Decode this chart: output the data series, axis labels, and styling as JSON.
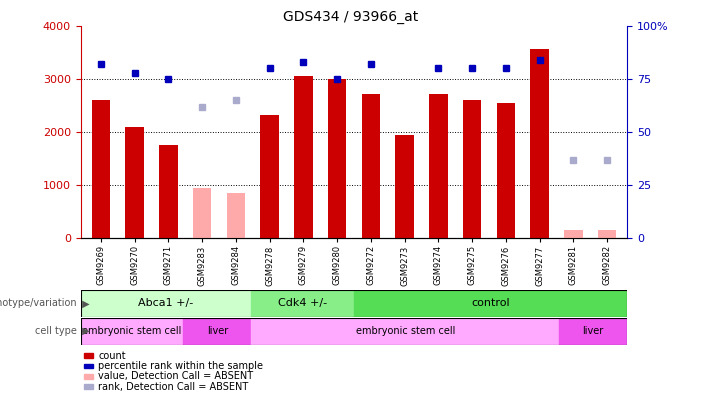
{
  "title": "GDS434 / 93966_at",
  "samples": [
    "GSM9269",
    "GSM9270",
    "GSM9271",
    "GSM9283",
    "GSM9284",
    "GSM9278",
    "GSM9279",
    "GSM9280",
    "GSM9272",
    "GSM9273",
    "GSM9274",
    "GSM9275",
    "GSM9276",
    "GSM9277",
    "GSM9281",
    "GSM9282"
  ],
  "counts": [
    2600,
    2100,
    1750,
    null,
    null,
    2320,
    3050,
    3000,
    2720,
    1950,
    2720,
    2600,
    2540,
    3570,
    null,
    null
  ],
  "absent_counts": [
    null,
    null,
    null,
    950,
    850,
    null,
    null,
    null,
    null,
    null,
    null,
    null,
    null,
    null,
    150,
    150
  ],
  "ranks": [
    82,
    78,
    75,
    null,
    null,
    80,
    83,
    75,
    82,
    null,
    80,
    80,
    80,
    84,
    null,
    null
  ],
  "absent_ranks": [
    null,
    null,
    null,
    62,
    65,
    null,
    null,
    null,
    null,
    null,
    null,
    null,
    null,
    null,
    37,
    37
  ],
  "ylim_left": [
    0,
    4000
  ],
  "ylim_right": [
    0,
    100
  ],
  "yticks_left": [
    0,
    1000,
    2000,
    3000,
    4000
  ],
  "yticks_right": [
    0,
    25,
    50,
    75,
    100
  ],
  "bar_color": "#cc0000",
  "absent_bar_color": "#ffaaaa",
  "rank_color": "#0000bb",
  "absent_rank_color": "#aaaacc",
  "genotype_groups": [
    {
      "label": "Abca1 +/-",
      "start": 0,
      "end": 5,
      "color": "#ccffcc"
    },
    {
      "label": "Cdk4 +/-",
      "start": 5,
      "end": 8,
      "color": "#88ee88"
    },
    {
      "label": "control",
      "start": 8,
      "end": 16,
      "color": "#55dd55"
    }
  ],
  "celltype_groups": [
    {
      "label": "embryonic stem cell",
      "start": 0,
      "end": 3,
      "color": "#ffaaff"
    },
    {
      "label": "liver",
      "start": 3,
      "end": 5,
      "color": "#ee55ee"
    },
    {
      "label": "embryonic stem cell",
      "start": 5,
      "end": 14,
      "color": "#ffaaff"
    },
    {
      "label": "liver",
      "start": 14,
      "end": 16,
      "color": "#ee55ee"
    }
  ],
  "legend_items": [
    {
      "label": "count",
      "color": "#cc0000"
    },
    {
      "label": "percentile rank within the sample",
      "color": "#0000bb"
    },
    {
      "label": "value, Detection Call = ABSENT",
      "color": "#ffaaaa"
    },
    {
      "label": "rank, Detection Call = ABSENT",
      "color": "#aaaacc"
    }
  ]
}
